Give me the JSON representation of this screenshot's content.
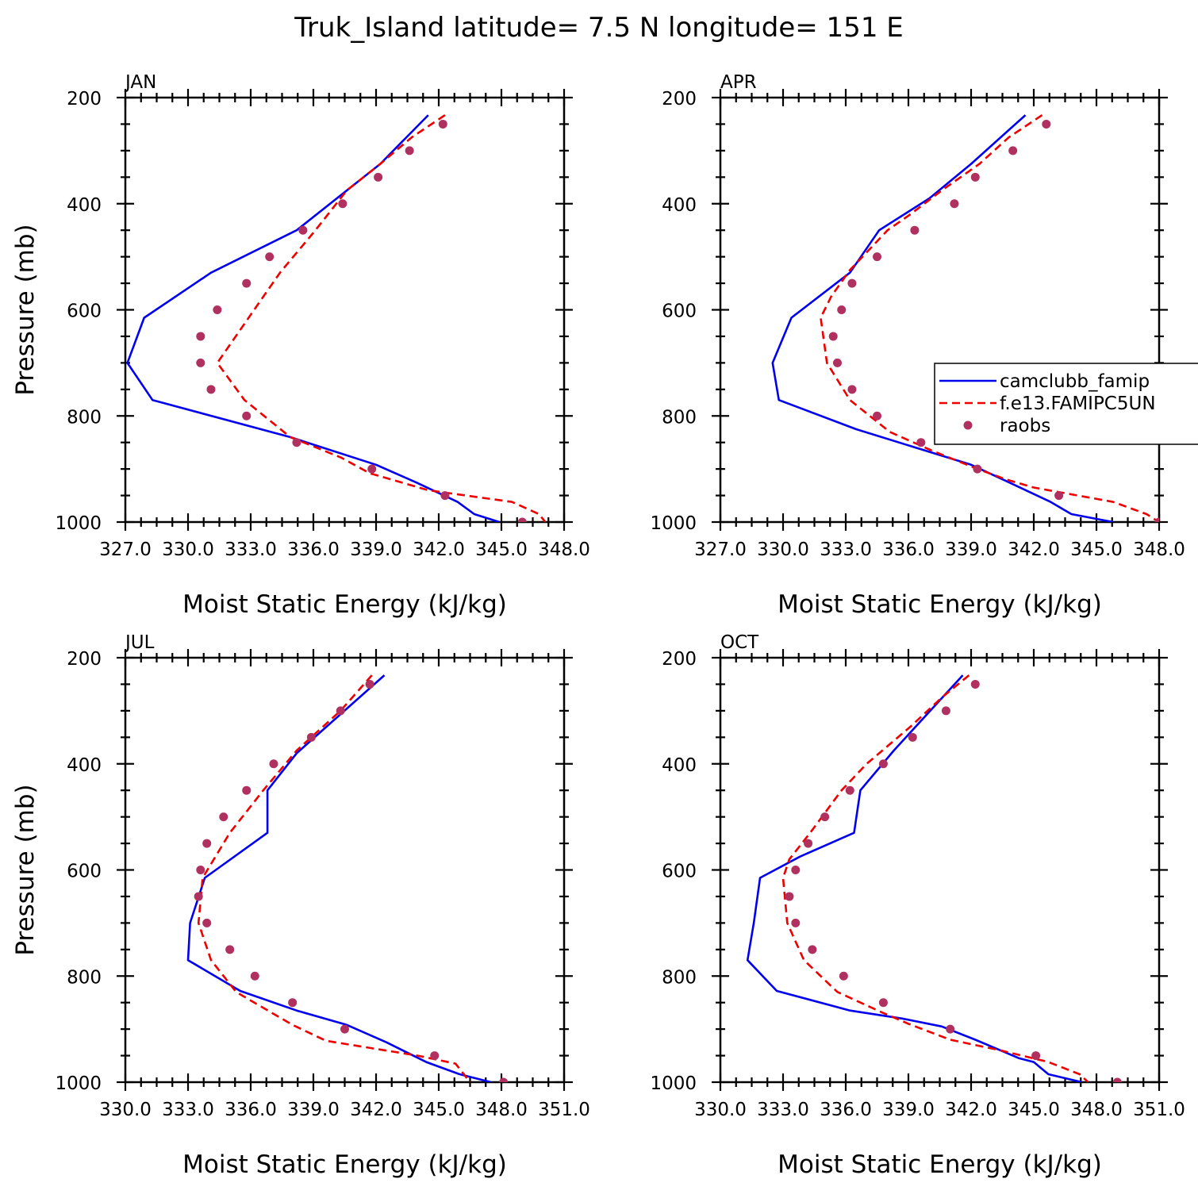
{
  "title": "Truk_Island  latitude= 7.5 N longitude= 151 E",
  "chart_data": [
    {
      "type": "line",
      "panel_title": "JAN",
      "xlabel": "Moist Static Energy (kJ/kg)",
      "ylabel": "Pressure (mb)",
      "xlim": [
        327.0,
        348.0
      ],
      "ylim": [
        1000,
        200
      ],
      "x_ticks": [
        327.0,
        330.0,
        333.0,
        336.0,
        339.0,
        342.0,
        345.0,
        348.0
      ],
      "x_tick_labels": [
        "327.0",
        "330.0",
        "333.0",
        "336.0",
        "339.0",
        "342.0",
        "345.0",
        "348.0"
      ],
      "y_ticks": [
        200,
        400,
        600,
        800,
        1000
      ],
      "y_tick_labels": [
        "200",
        "400",
        "600",
        "800",
        "1000"
      ],
      "series": [
        {
          "key": "camclubb",
          "style": "solid",
          "color": "#0000ee",
          "points": [
            [
              341.5,
              233
            ],
            [
              339.2,
              325
            ],
            [
              335.2,
              450
            ],
            [
              331.1,
              530
            ],
            [
              327.9,
              615
            ],
            [
              327.1,
              700
            ],
            [
              328.3,
              770
            ],
            [
              334.9,
              840
            ],
            [
              339.0,
              892
            ],
            [
              340.9,
              925
            ],
            [
              342.9,
              962
            ],
            [
              343.7,
              985
            ],
            [
              344.9,
              1000
            ]
          ]
        },
        {
          "key": "fe13",
          "style": "dashed",
          "color": "#ee0000",
          "points": [
            [
              342.3,
              233
            ],
            [
              340.7,
              275
            ],
            [
              339.2,
              325
            ],
            [
              337.6,
              375
            ],
            [
              336.1,
              450
            ],
            [
              334.4,
              530
            ],
            [
              332.9,
              615
            ],
            [
              331.4,
              700
            ],
            [
              332.7,
              770
            ],
            [
              334.9,
              840
            ],
            [
              337.3,
              878
            ],
            [
              338.7,
              908
            ],
            [
              341.5,
              940
            ],
            [
              345.5,
              962
            ],
            [
              346.8,
              985
            ],
            [
              347.1,
              1000
            ]
          ]
        },
        {
          "key": "raobs",
          "style": "markers",
          "color": "#b03060",
          "points": [
            [
              342.2,
              250
            ],
            [
              340.6,
              300
            ],
            [
              339.1,
              350
            ],
            [
              337.4,
              400
            ],
            [
              335.5,
              450
            ],
            [
              333.9,
              500
            ],
            [
              332.8,
              550
            ],
            [
              331.4,
              600
            ],
            [
              330.6,
              650
            ],
            [
              330.6,
              700
            ],
            [
              331.1,
              750
            ],
            [
              332.8,
              800
            ],
            [
              335.2,
              850
            ],
            [
              338.8,
              900
            ],
            [
              342.3,
              950
            ],
            [
              346.0,
              1000
            ]
          ]
        }
      ]
    },
    {
      "type": "line",
      "panel_title": "APR",
      "xlabel": "Moist Static Energy (kJ/kg)",
      "ylabel": "",
      "xlim": [
        327.0,
        348.0
      ],
      "ylim": [
        1000,
        200
      ],
      "x_ticks": [
        327.0,
        330.0,
        333.0,
        336.0,
        339.0,
        342.0,
        345.0,
        348.0
      ],
      "x_tick_labels": [
        "327.0",
        "330.0",
        "333.0",
        "336.0",
        "339.0",
        "342.0",
        "345.0",
        "348.0"
      ],
      "y_ticks": [
        200,
        400,
        600,
        800,
        1000
      ],
      "y_tick_labels": [
        "200",
        "400",
        "600",
        "800",
        "1000"
      ],
      "series": [
        {
          "key": "camclubb",
          "style": "solid",
          "color": "#0000ee",
          "points": [
            [
              341.6,
              233
            ],
            [
              339.0,
              325
            ],
            [
              337.0,
              390
            ],
            [
              334.6,
              450
            ],
            [
              333.2,
              530
            ],
            [
              330.4,
              615
            ],
            [
              329.5,
              700
            ],
            [
              329.8,
              770
            ],
            [
              333.5,
              825
            ],
            [
              339.0,
              892
            ],
            [
              340.8,
              925
            ],
            [
              342.8,
              962
            ],
            [
              343.8,
              985
            ],
            [
              345.8,
              1000
            ]
          ]
        },
        {
          "key": "fe13",
          "style": "dashed",
          "color": "#ee0000",
          "points": [
            [
              342.4,
              233
            ],
            [
              340.8,
              275
            ],
            [
              339.4,
              325
            ],
            [
              337.6,
              375
            ],
            [
              336.1,
              420
            ],
            [
              335.0,
              450
            ],
            [
              333.2,
              525
            ],
            [
              332.3,
              575
            ],
            [
              331.8,
              615
            ],
            [
              332.1,
              700
            ],
            [
              333.2,
              770
            ],
            [
              335.1,
              830
            ],
            [
              337.1,
              865
            ],
            [
              339.3,
              900
            ],
            [
              340.7,
              920
            ],
            [
              342.0,
              935
            ],
            [
              345.8,
              962
            ],
            [
              347.4,
              985
            ],
            [
              348.0,
              1000
            ]
          ]
        },
        {
          "key": "raobs",
          "style": "markers",
          "color": "#b03060",
          "points": [
            [
              342.6,
              250
            ],
            [
              341.0,
              300
            ],
            [
              339.2,
              350
            ],
            [
              338.2,
              400
            ],
            [
              336.3,
              450
            ],
            [
              334.5,
              500
            ],
            [
              333.3,
              550
            ],
            [
              332.8,
              600
            ],
            [
              332.4,
              650
            ],
            [
              332.6,
              700
            ],
            [
              333.3,
              750
            ],
            [
              334.5,
              800
            ],
            [
              336.6,
              850
            ],
            [
              339.3,
              900
            ],
            [
              343.2,
              950
            ],
            [
              348.0,
              1000
            ]
          ]
        }
      ]
    },
    {
      "type": "line",
      "panel_title": "JUL",
      "xlabel": "Moist Static Energy (kJ/kg)",
      "ylabel": "Pressure (mb)",
      "xlim": [
        330.0,
        351.0
      ],
      "ylim": [
        1000,
        200
      ],
      "x_ticks": [
        330.0,
        333.0,
        336.0,
        339.0,
        342.0,
        345.0,
        348.0,
        351.0
      ],
      "x_tick_labels": [
        "330.0",
        "333.0",
        "336.0",
        "339.0",
        "342.0",
        "345.0",
        "348.0",
        "351.0"
      ],
      "y_ticks": [
        200,
        400,
        600,
        800,
        1000
      ],
      "y_tick_labels": [
        "200",
        "400",
        "600",
        "800",
        "1000"
      ],
      "series": [
        {
          "key": "camclubb",
          "style": "solid",
          "color": "#0000ee",
          "points": [
            [
              342.4,
              233
            ],
            [
              338.2,
              380
            ],
            [
              336.8,
              450
            ],
            [
              336.8,
              530
            ],
            [
              333.8,
              615
            ],
            [
              333.1,
              700
            ],
            [
              333.0,
              770
            ],
            [
              335.5,
              828
            ],
            [
              338.2,
              865
            ],
            [
              340.6,
              892
            ],
            [
              342.5,
              925
            ],
            [
              344.4,
              962
            ],
            [
              346.0,
              985
            ],
            [
              347.5,
              1000
            ]
          ]
        },
        {
          "key": "fe13",
          "style": "dashed",
          "color": "#ee0000",
          "points": [
            [
              341.8,
              233
            ],
            [
              340.3,
              300
            ],
            [
              338.2,
              375
            ],
            [
              336.6,
              450
            ],
            [
              335.0,
              530
            ],
            [
              333.7,
              615
            ],
            [
              333.5,
              700
            ],
            [
              334.1,
              770
            ],
            [
              335.3,
              830
            ],
            [
              338.0,
              892
            ],
            [
              339.6,
              922
            ],
            [
              344.0,
              950
            ],
            [
              345.8,
              965
            ],
            [
              346.5,
              1000
            ]
          ]
        },
        {
          "key": "raobs",
          "style": "markers",
          "color": "#b03060",
          "points": [
            [
              341.7,
              250
            ],
            [
              340.3,
              300
            ],
            [
              338.9,
              350
            ],
            [
              337.1,
              400
            ],
            [
              335.8,
              450
            ],
            [
              334.7,
              500
            ],
            [
              333.9,
              550
            ],
            [
              333.6,
              600
            ],
            [
              333.5,
              650
            ],
            [
              333.9,
              700
            ],
            [
              335.0,
              750
            ],
            [
              336.2,
              800
            ],
            [
              338.0,
              850
            ],
            [
              340.5,
              900
            ],
            [
              344.8,
              950
            ],
            [
              348.1,
              1000
            ]
          ]
        }
      ]
    },
    {
      "type": "line",
      "panel_title": "OCT",
      "xlabel": "Moist Static Energy (kJ/kg)",
      "ylabel": "",
      "xlim": [
        330.0,
        351.0
      ],
      "ylim": [
        1000,
        200
      ],
      "x_ticks": [
        330.0,
        333.0,
        336.0,
        339.0,
        342.0,
        345.0,
        348.0,
        351.0
      ],
      "x_tick_labels": [
        "330.0",
        "333.0",
        "336.0",
        "339.0",
        "342.0",
        "345.0",
        "348.0",
        "351.0"
      ],
      "y_ticks": [
        200,
        400,
        600,
        800,
        1000
      ],
      "y_tick_labels": [
        "200",
        "400",
        "600",
        "800",
        "1000"
      ],
      "series": [
        {
          "key": "camclubb",
          "style": "solid",
          "color": "#0000ee",
          "points": [
            [
              341.6,
              233
            ],
            [
              338.3,
              375
            ],
            [
              336.7,
              450
            ],
            [
              336.4,
              530
            ],
            [
              333.8,
              575
            ],
            [
              331.9,
              615
            ],
            [
              331.6,
              700
            ],
            [
              331.3,
              770
            ],
            [
              332.7,
              828
            ],
            [
              336.2,
              865
            ],
            [
              338.7,
              880
            ],
            [
              340.6,
              895
            ],
            [
              342.2,
              920
            ],
            [
              344.3,
              955
            ],
            [
              345.0,
              962
            ],
            [
              345.7,
              985
            ],
            [
              347.3,
              1000
            ]
          ]
        },
        {
          "key": "fe13",
          "style": "dashed",
          "color": "#ee0000",
          "points": [
            [
              341.9,
              233
            ],
            [
              340.6,
              275
            ],
            [
              339.1,
              330
            ],
            [
              337.0,
              400
            ],
            [
              335.8,
              450
            ],
            [
              334.3,
              530
            ],
            [
              333.3,
              580
            ],
            [
              333.0,
              615
            ],
            [
              333.2,
              700
            ],
            [
              334.0,
              770
            ],
            [
              335.6,
              830
            ],
            [
              337.7,
              868
            ],
            [
              339.0,
              890
            ],
            [
              341.0,
              920
            ],
            [
              343.4,
              940
            ],
            [
              345.7,
              962
            ],
            [
              347.2,
              985
            ],
            [
              347.6,
              1000
            ]
          ]
        },
        {
          "key": "raobs",
          "style": "markers",
          "color": "#b03060",
          "points": [
            [
              342.2,
              250
            ],
            [
              340.8,
              300
            ],
            [
              339.2,
              350
            ],
            [
              337.8,
              400
            ],
            [
              336.2,
              450
            ],
            [
              335.0,
              500
            ],
            [
              334.2,
              550
            ],
            [
              333.6,
              600
            ],
            [
              333.3,
              650
            ],
            [
              333.6,
              700
            ],
            [
              334.4,
              750
            ],
            [
              335.9,
              800
            ],
            [
              337.8,
              850
            ],
            [
              341.0,
              900
            ],
            [
              345.1,
              950
            ],
            [
              349.0,
              1000
            ]
          ]
        }
      ]
    }
  ],
  "legend": {
    "placement": "right, in APR panel",
    "entries": [
      {
        "key": "camclubb",
        "label": "camclubb_famip",
        "style": "solid",
        "color": "#0000ee"
      },
      {
        "key": "fe13",
        "label": "f.e13.FAMIPC5UN",
        "style": "dashed",
        "color": "#ee0000"
      },
      {
        "key": "raobs",
        "label": "raobs",
        "style": "markers",
        "color": "#b03060"
      }
    ]
  }
}
